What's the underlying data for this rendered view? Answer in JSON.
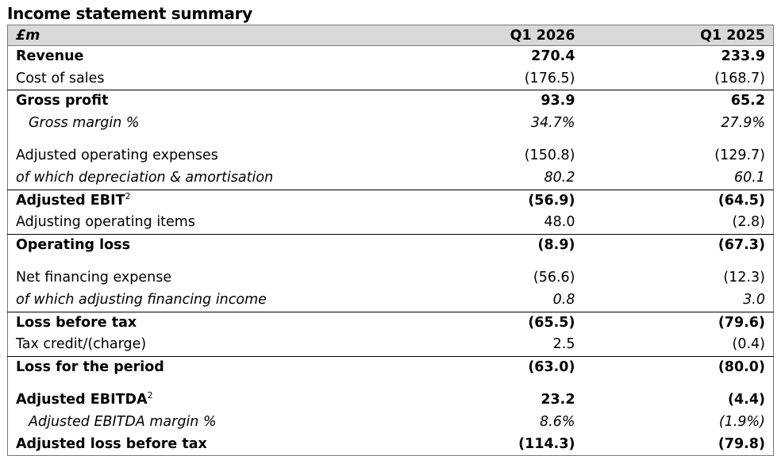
{
  "title": "Income statement summary",
  "header": {
    "unit": "£m",
    "col1": "Q1 2026",
    "col2": "Q1 2025"
  },
  "rows": [
    {
      "label": "Revenue",
      "sup": "",
      "v1": "270.4",
      "v2": "233.9"
    },
    {
      "label": "Cost of sales",
      "sup": "",
      "v1": "(176.5)",
      "v2": "(168.7)"
    },
    {
      "label": "Gross profit",
      "sup": "",
      "v1": "93.9",
      "v2": "65.2"
    },
    {
      "label": "Gross margin %",
      "sup": "",
      "v1": "34.7%",
      "v2": "27.9%"
    },
    {
      "label": "Adjusted operating expenses",
      "sup": "",
      "v1": "(150.8)",
      "v2": "(129.7)"
    },
    {
      "label": "of which depreciation & amortisation",
      "sup": "",
      "v1": "80.2",
      "v2": "60.1"
    },
    {
      "label": "Adjusted EBIT",
      "sup": "2",
      "v1": "(56.9)",
      "v2": "(64.5)"
    },
    {
      "label": "Adjusting operating items",
      "sup": "",
      "v1": "48.0",
      "v2": "(2.8)"
    },
    {
      "label": "Operating loss",
      "sup": "",
      "v1": "(8.9)",
      "v2": "(67.3)"
    },
    {
      "label": "Net financing expense",
      "sup": "",
      "v1": "(56.6)",
      "v2": "(12.3)"
    },
    {
      "label": "of which adjusting financing income",
      "sup": "",
      "v1": "0.8",
      "v2": "3.0"
    },
    {
      "label": "Loss before tax",
      "sup": "",
      "v1": "(65.5)",
      "v2": "(79.6)"
    },
    {
      "label": "Tax credit/(charge)",
      "sup": "",
      "v1": "2.5",
      "v2": "(0.4)"
    },
    {
      "label": "Loss for the period",
      "sup": "",
      "v1": "(63.0)",
      "v2": "(80.0)"
    },
    {
      "label": "Adjusted EBITDA",
      "sup": "2",
      "v1": "23.2",
      "v2": "(4.4)"
    },
    {
      "label": "Adjusted EBITDA margin %",
      "sup": "",
      "v1": "8.6%",
      "v2": "(1.9%)"
    },
    {
      "label": "Adjusted loss before tax",
      "sup": "",
      "v1": "(114.3)",
      "v2": "(79.8)"
    }
  ]
}
